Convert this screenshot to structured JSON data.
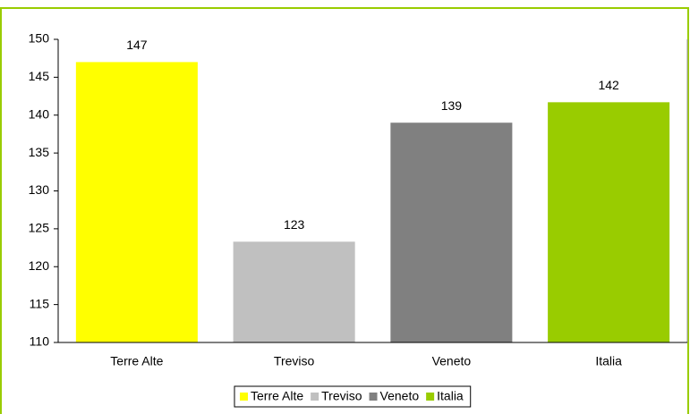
{
  "chart_data": {
    "type": "bar",
    "categories": [
      "Terre Alte",
      "Treviso",
      "Veneto",
      "Italia"
    ],
    "values": [
      147,
      123.3,
      139,
      141.7
    ],
    "value_labels": [
      "147",
      "123",
      "139",
      "142"
    ],
    "colors": [
      "#ffff00",
      "#c0c0c0",
      "#808080",
      "#99cc00"
    ],
    "ylim": [
      110,
      150
    ],
    "yticks": [
      110,
      115,
      120,
      125,
      130,
      135,
      140,
      145,
      150
    ],
    "grid": false,
    "legend": "bottom"
  }
}
